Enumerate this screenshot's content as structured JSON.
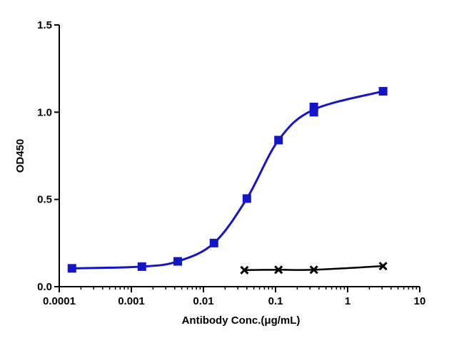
{
  "chart_data": {
    "type": "scatter",
    "x_scale": "log",
    "xlabel": "Antibody Conc.(μg/mL)",
    "ylabel": "OD450",
    "xlim": [
      0.0001,
      10
    ],
    "ylim": [
      0.0,
      1.5
    ],
    "x_ticks": [
      {
        "value": 0.0001,
        "label": "0.0001"
      },
      {
        "value": 0.001,
        "label": "0.001"
      },
      {
        "value": 0.01,
        "label": "0.01"
      },
      {
        "value": 0.1,
        "label": "0.1"
      },
      {
        "value": 1,
        "label": "1"
      },
      {
        "value": 10,
        "label": "10"
      }
    ],
    "y_ticks": [
      {
        "value": 0.0,
        "label": "0.0"
      },
      {
        "value": 0.5,
        "label": "0.5"
      },
      {
        "value": 1.0,
        "label": "1.0"
      },
      {
        "value": 1.5,
        "label": "1.5"
      }
    ],
    "grid": false,
    "series": [
      {
        "marker": "square",
        "color": "#1515c8",
        "points": [
          {
            "x": 0.00015,
            "y": 0.105
          },
          {
            "x": 0.0014,
            "y": 0.115
          },
          {
            "x": 0.0044,
            "y": 0.145
          },
          {
            "x": 0.014,
            "y": 0.25
          },
          {
            "x": 0.04,
            "y": 0.505
          },
          {
            "x": 0.11,
            "y": 0.84
          },
          {
            "x": 0.34,
            "y": 1.0
          },
          {
            "x": 0.34,
            "y": 1.03
          },
          {
            "x": 3.1,
            "y": 1.12
          }
        ]
      },
      {
        "marker": "x",
        "color": "#000000",
        "points": [
          {
            "x": 0.037,
            "y": 0.095
          },
          {
            "x": 0.11,
            "y": 0.097
          },
          {
            "x": 0.34,
            "y": 0.097
          },
          {
            "x": 3.1,
            "y": 0.118
          }
        ]
      }
    ]
  }
}
